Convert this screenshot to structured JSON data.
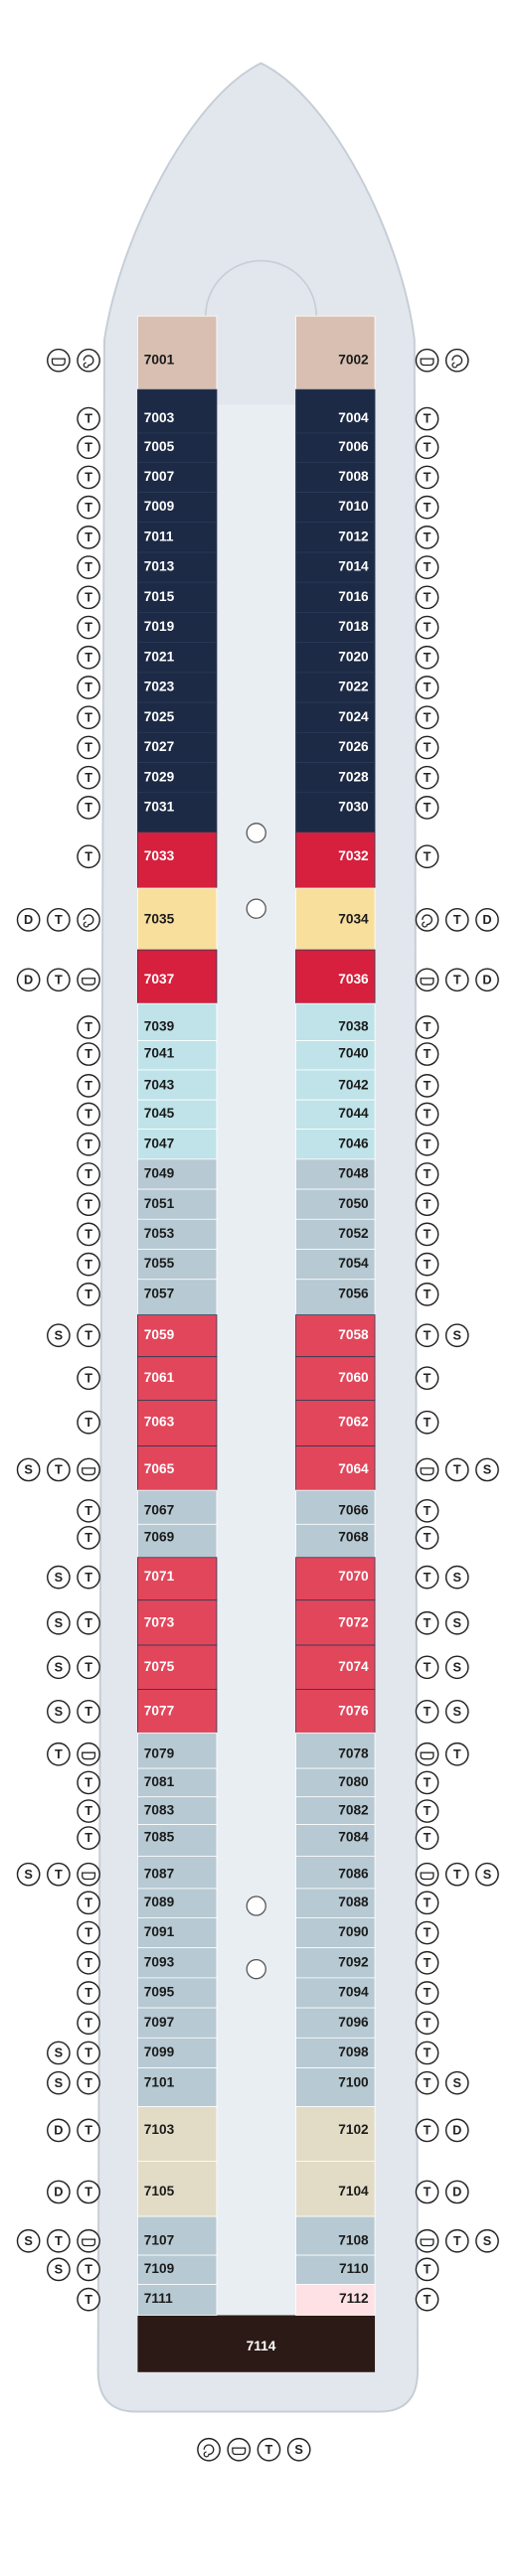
{
  "left": [
    {
      "cabin": "7001",
      "badges": []
    },
    {
      "cabin": "7003",
      "badges": [
        "T"
      ]
    },
    {
      "cabin": "7005",
      "badges": [
        "T"
      ]
    },
    {
      "cabin": "7007",
      "badges": [
        "T"
      ]
    },
    {
      "cabin": "7009",
      "badges": [
        "T"
      ]
    },
    {
      "cabin": "7011",
      "badges": [
        "T"
      ]
    },
    {
      "cabin": "7013",
      "badges": [
        "T"
      ]
    },
    {
      "cabin": "7015",
      "badges": [
        "T"
      ]
    },
    {
      "cabin": "7019",
      "badges": [
        "T"
      ]
    },
    {
      "cabin": "7021",
      "badges": [
        "T"
      ]
    },
    {
      "cabin": "7023",
      "badges": [
        "T"
      ]
    },
    {
      "cabin": "7025",
      "badges": [
        "T"
      ]
    },
    {
      "cabin": "7027",
      "badges": [
        "T"
      ]
    },
    {
      "cabin": "7029",
      "badges": [
        "T"
      ]
    },
    {
      "cabin": "7031",
      "badges": [
        "T"
      ]
    },
    {
      "cabin": "7033",
      "badges": [
        "T"
      ]
    },
    {
      "cabin": "7035",
      "badges": [
        "D",
        "T"
      ]
    },
    {
      "cabin": "7037",
      "badges": [
        "D",
        "T"
      ]
    },
    {
      "cabin": "7039",
      "badges": [
        "T"
      ]
    },
    {
      "cabin": "7041",
      "badges": [
        "T"
      ]
    },
    {
      "cabin": "7043",
      "badges": [
        "T"
      ]
    },
    {
      "cabin": "7045",
      "badges": [
        "T"
      ]
    },
    {
      "cabin": "7047",
      "badges": [
        "T"
      ]
    },
    {
      "cabin": "7049",
      "badges": [
        "T"
      ]
    },
    {
      "cabin": "7051",
      "badges": [
        "T"
      ]
    },
    {
      "cabin": "7053",
      "badges": [
        "T"
      ]
    },
    {
      "cabin": "7055",
      "badges": [
        "T"
      ]
    },
    {
      "cabin": "7057",
      "badges": [
        "T"
      ]
    },
    {
      "cabin": "7059",
      "badges": [
        "S",
        "T"
      ]
    },
    {
      "cabin": "7061",
      "badges": [
        "T"
      ]
    },
    {
      "cabin": "7063",
      "badges": [
        "T"
      ]
    },
    {
      "cabin": "7065",
      "badges": [
        "S",
        "T"
      ]
    },
    {
      "cabin": "7067",
      "badges": [
        "T"
      ]
    },
    {
      "cabin": "7069",
      "badges": [
        "T"
      ]
    },
    {
      "cabin": "7071",
      "badges": [
        "S",
        "T"
      ]
    },
    {
      "cabin": "7073",
      "badges": [
        "S",
        "T"
      ]
    },
    {
      "cabin": "7075",
      "badges": [
        "S",
        "T"
      ]
    },
    {
      "cabin": "7077",
      "badges": [
        "S",
        "T"
      ]
    },
    {
      "cabin": "7079",
      "badges": [
        "T"
      ]
    },
    {
      "cabin": "7081",
      "badges": [
        "T"
      ]
    },
    {
      "cabin": "7083",
      "badges": [
        "T"
      ]
    },
    {
      "cabin": "7085",
      "badges": [
        "T"
      ]
    },
    {
      "cabin": "7087",
      "badges": [
        "S",
        "T"
      ]
    },
    {
      "cabin": "7089",
      "badges": [
        "T"
      ]
    },
    {
      "cabin": "7091",
      "badges": [
        "T"
      ]
    },
    {
      "cabin": "7093",
      "badges": [
        "T"
      ]
    },
    {
      "cabin": "7095",
      "badges": [
        "T"
      ]
    },
    {
      "cabin": "7097",
      "badges": [
        "T"
      ]
    },
    {
      "cabin": "7099",
      "badges": [
        "S",
        "T"
      ]
    },
    {
      "cabin": "7101",
      "badges": [
        "S",
        "T"
      ]
    },
    {
      "cabin": "7103",
      "badges": [
        "D",
        "T"
      ]
    },
    {
      "cabin": "7105",
      "badges": [
        "D",
        "T"
      ]
    },
    {
      "cabin": "7107",
      "badges": [
        "S",
        "T"
      ]
    },
    {
      "cabin": "7109",
      "badges": [
        "S",
        "T"
      ]
    },
    {
      "cabin": "7111",
      "badges": [
        "T"
      ]
    }
  ],
  "right": [
    {
      "cabin": "7002",
      "badges": []
    },
    {
      "cabin": "7004",
      "badges": [
        "T"
      ]
    },
    {
      "cabin": "7006",
      "badges": [
        "T"
      ]
    },
    {
      "cabin": "7008",
      "badges": [
        "T"
      ]
    },
    {
      "cabin": "7010",
      "badges": [
        "T"
      ]
    },
    {
      "cabin": "7012",
      "badges": [
        "T"
      ]
    },
    {
      "cabin": "7014",
      "badges": [
        "T"
      ]
    },
    {
      "cabin": "7016",
      "badges": [
        "T"
      ]
    },
    {
      "cabin": "7018",
      "badges": [
        "T"
      ]
    },
    {
      "cabin": "7020",
      "badges": [
        "T"
      ]
    },
    {
      "cabin": "7022",
      "badges": [
        "T"
      ]
    },
    {
      "cabin": "7024",
      "badges": [
        "T"
      ]
    },
    {
      "cabin": "7026",
      "badges": [
        "T"
      ]
    },
    {
      "cabin": "7028",
      "badges": [
        "T"
      ]
    },
    {
      "cabin": "7030",
      "badges": [
        "T"
      ]
    },
    {
      "cabin": "7032",
      "badges": [
        "T"
      ]
    },
    {
      "cabin": "7034",
      "badges": [
        "T",
        "D"
      ]
    },
    {
      "cabin": "7036",
      "badges": [
        "T",
        "D"
      ]
    },
    {
      "cabin": "7038",
      "badges": [
        "T"
      ]
    },
    {
      "cabin": "7040",
      "badges": [
        "T"
      ]
    },
    {
      "cabin": "7042",
      "badges": [
        "T"
      ]
    },
    {
      "cabin": "7044",
      "badges": [
        "T"
      ]
    },
    {
      "cabin": "7046",
      "badges": [
        "T"
      ]
    },
    {
      "cabin": "7048",
      "badges": [
        "T"
      ]
    },
    {
      "cabin": "7050",
      "badges": [
        "T"
      ]
    },
    {
      "cabin": "7052",
      "badges": [
        "T"
      ]
    },
    {
      "cabin": "7054",
      "badges": [
        "T"
      ]
    },
    {
      "cabin": "7056",
      "badges": [
        "T"
      ]
    },
    {
      "cabin": "7058",
      "badges": [
        "T",
        "S"
      ]
    },
    {
      "cabin": "7060",
      "badges": [
        "T"
      ]
    },
    {
      "cabin": "7062",
      "badges": [
        "T"
      ]
    },
    {
      "cabin": "7064",
      "badges": [
        "T",
        "S"
      ]
    },
    {
      "cabin": "7066",
      "badges": [
        "T"
      ]
    },
    {
      "cabin": "7068",
      "badges": [
        "T"
      ]
    },
    {
      "cabin": "7070",
      "badges": [
        "T",
        "S"
      ]
    },
    {
      "cabin": "7072",
      "badges": [
        "T",
        "S"
      ]
    },
    {
      "cabin": "7074",
      "badges": [
        "T",
        "S"
      ]
    },
    {
      "cabin": "7076",
      "badges": [
        "T",
        "S"
      ]
    },
    {
      "cabin": "7078",
      "badges": [
        "T"
      ]
    },
    {
      "cabin": "7080",
      "badges": [
        "T"
      ]
    },
    {
      "cabin": "7082",
      "badges": [
        "T"
      ]
    },
    {
      "cabin": "7084",
      "badges": [
        "T"
      ]
    },
    {
      "cabin": "7086",
      "badges": [
        "T",
        "S"
      ]
    },
    {
      "cabin": "7088",
      "badges": [
        "T"
      ]
    },
    {
      "cabin": "7090",
      "badges": [
        "T"
      ]
    },
    {
      "cabin": "7092",
      "badges": [
        "T"
      ]
    },
    {
      "cabin": "7094",
      "badges": [
        "T"
      ]
    },
    {
      "cabin": "7096",
      "badges": [
        "T"
      ]
    },
    {
      "cabin": "7098",
      "badges": [
        "T"
      ]
    },
    {
      "cabin": "7100",
      "badges": [
        "T",
        "S"
      ]
    },
    {
      "cabin": "7102",
      "badges": [
        "T",
        "D"
      ]
    },
    {
      "cabin": "7104",
      "badges": [
        "T",
        "D"
      ]
    },
    {
      "cabin": "7108",
      "badges": [
        "T",
        "S"
      ]
    },
    {
      "cabin": "7110",
      "badges": [
        "T"
      ]
    },
    {
      "cabin": "7112",
      "badges": [
        "T"
      ]
    }
  ],
  "stern_cabin": "7114",
  "bottom_badges": [
    "T",
    "S"
  ]
}
